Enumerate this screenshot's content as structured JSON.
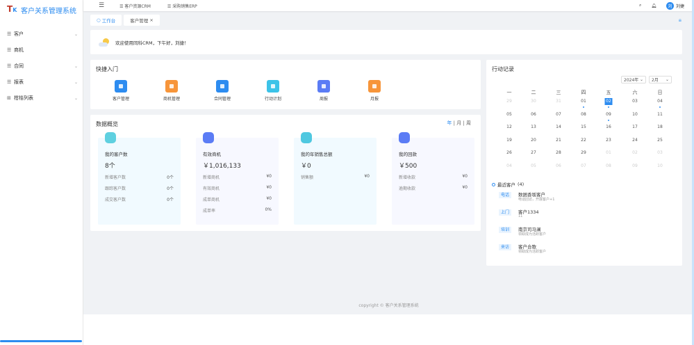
{
  "app": {
    "title": "客户关系管理系统",
    "logo_text": "TK"
  },
  "sidebar": {
    "items": [
      {
        "label": "客户",
        "icon": "menu-icon",
        "expandable": true
      },
      {
        "label": "商机",
        "icon": "menu-icon",
        "expandable": false
      },
      {
        "label": "合同",
        "icon": "menu-icon",
        "expandable": true
      },
      {
        "label": "报表",
        "icon": "menu-icon",
        "expandable": true
      },
      {
        "label": "柑桔列表",
        "icon": "grid-icon",
        "expandable": true
      }
    ]
  },
  "topbar": {
    "nav": [
      "客户资源CRM",
      "采购销售ERP"
    ],
    "user": "刘捷",
    "avatar": "刘"
  },
  "tabs": [
    {
      "label": "工作台",
      "active": true
    },
    {
      "label": "客户管理",
      "active": false,
      "closable": true
    }
  ],
  "welcome": {
    "text": "欢迎使用同科CRM，下午好，刘捷！"
  },
  "quick": {
    "title": "快捷入门",
    "items": [
      {
        "label": "客户管理",
        "color": "#2d8cf0"
      },
      {
        "label": "商机管理",
        "color": "#f7953a"
      },
      {
        "label": "合同管理",
        "color": "#2d8cf0"
      },
      {
        "label": "行动计划",
        "color": "#3cc3e8"
      },
      {
        "label": "周报",
        "color": "#5b7cf5"
      },
      {
        "label": "月报",
        "color": "#f7953a"
      }
    ]
  },
  "overview": {
    "title": "数据概览",
    "periods": [
      "年",
      "月",
      "周"
    ],
    "active_period": "年",
    "cards": [
      {
        "title": "我的客户数",
        "value": "8个",
        "bg": "#f1faff",
        "icon_color": "#5fd0e0",
        "rows": [
          [
            "新增客户数",
            "0个"
          ],
          [
            "跟踪客户数",
            "0个"
          ],
          [
            "成交客户数",
            "0个"
          ]
        ]
      },
      {
        "title": "有效商机",
        "value": "￥1,016,133",
        "bg": "#f7f8ff",
        "icon_color": "#5b7cf5",
        "rows": [
          [
            "新增商机",
            "¥0"
          ],
          [
            "有效商机",
            "¥0"
          ],
          [
            "成单商机",
            "¥0"
          ],
          [
            "成单率",
            "0%"
          ]
        ]
      },
      {
        "title": "我的年销售总额",
        "value": "￥0",
        "bg": "#f1faff",
        "icon_color": "#4fc8e0",
        "rows": [
          [
            "销售额",
            "¥0"
          ]
        ]
      },
      {
        "title": "我的回款",
        "value": "￥500",
        "bg": "#f7f8ff",
        "icon_color": "#5b7cf5",
        "rows": [
          [
            "新增收款",
            "¥0"
          ],
          [
            "逾期收款",
            "¥0"
          ]
        ]
      }
    ]
  },
  "record": {
    "title": "行动记录",
    "year": "2024年",
    "month": "2月",
    "weekdays": [
      "一",
      "二",
      "三",
      "四",
      "五",
      "六",
      "日"
    ],
    "weeks": [
      [
        "29",
        "30",
        "31",
        "01",
        "02",
        "03",
        "04"
      ],
      [
        "05",
        "06",
        "07",
        "08",
        "09",
        "10",
        "11"
      ],
      [
        "12",
        "13",
        "14",
        "15",
        "16",
        "17",
        "18"
      ],
      [
        "19",
        "20",
        "21",
        "22",
        "23",
        "24",
        "25"
      ],
      [
        "26",
        "27",
        "28",
        "29",
        "01",
        "02",
        "03"
      ],
      [
        "04",
        "05",
        "06",
        "07",
        "08",
        "09",
        "10"
      ]
    ],
    "selected": "02",
    "event_days": [
      "01",
      "02",
      "04",
      "09"
    ],
    "visits_title": "最近客户",
    "visits_count": "(4)",
    "visits": [
      {
        "tag": "电话",
        "name": "数据香坂客户",
        "sub": "电话回访，开展客户+1"
      },
      {
        "tag": "上门",
        "name": "客户1334",
        "sub": "11"
      },
      {
        "tag": "培训",
        "name": "南京司马澜",
        "sub": "领取成为活跃客户"
      },
      {
        "tag": "来访",
        "name": "客户合歌",
        "sub": "领取成为活跃客户"
      }
    ]
  },
  "footer": "copyright © 客户关系管理系统"
}
